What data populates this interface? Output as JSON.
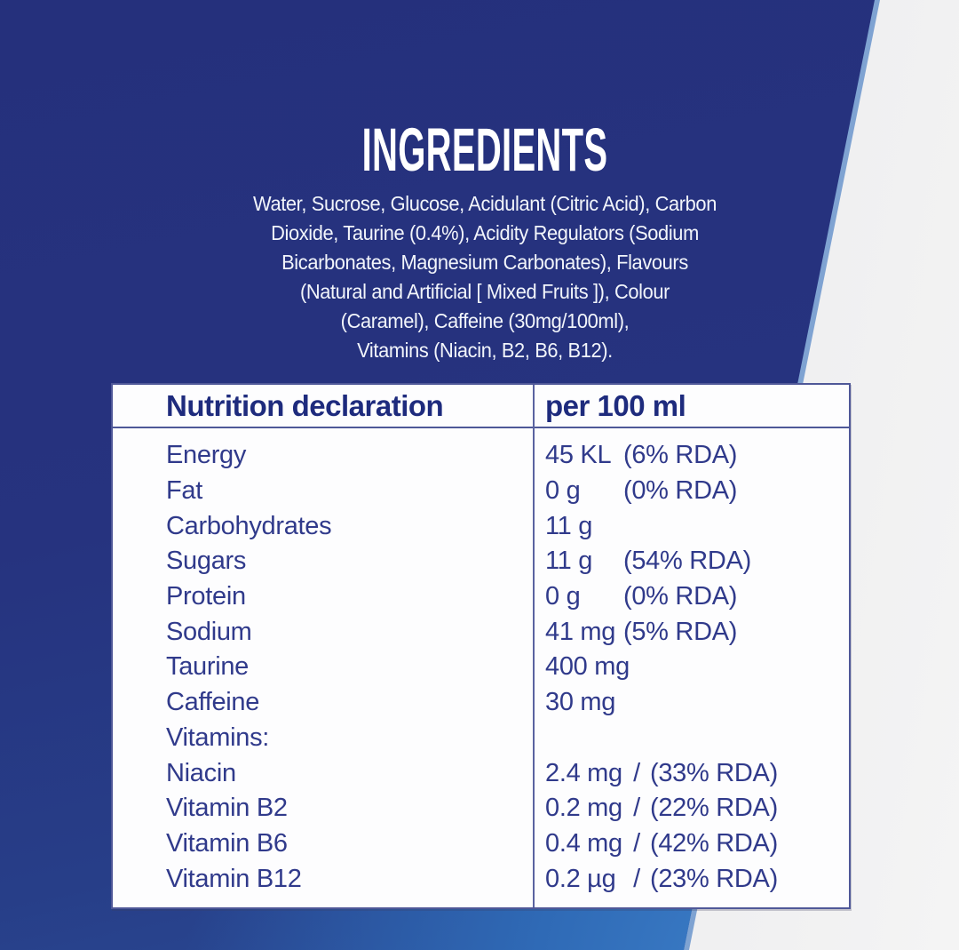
{
  "ingredients": {
    "title": "INGREDIENTS",
    "lines": [
      "Water, Sucrose, Glucose, Acidulant (Citric Acid), Carbon",
      "Dioxide, Taurine (0.4%), Acidity Regulators (Sodium",
      "Bicarbonates, Magnesium Carbonates), Flavours",
      "(Natural and Artificial [ Mixed Fruits ]), Colour",
      "(Caramel), Caffeine (30mg/100ml),",
      "Vitamins (Niacin, B2, B6, B12)."
    ]
  },
  "nutrition_table": {
    "header": {
      "col1": "Nutrition declaration",
      "col2": "per 100 ml"
    },
    "rows": [
      {
        "label": "Energy",
        "amount": "45 KL",
        "sep": "",
        "rda": "(6% RDA)"
      },
      {
        "label": "Fat",
        "amount": "0 g",
        "sep": "",
        "rda": "(0% RDA)"
      },
      {
        "label": "Carbohydrates",
        "amount": "11 g",
        "sep": "",
        "rda": ""
      },
      {
        "label": "Sugars",
        "amount": "11 g",
        "sep": "",
        "rda": "(54% RDA)"
      },
      {
        "label": "Protein",
        "amount": "0 g",
        "sep": "",
        "rda": "(0% RDA)"
      },
      {
        "label": "Sodium",
        "amount": "41 mg",
        "sep": "",
        "rda": "(5% RDA)"
      },
      {
        "label": "Taurine",
        "amount": "400 mg",
        "sep": "",
        "rda": ""
      },
      {
        "label": "Caffeine",
        "amount": "30 mg",
        "sep": "",
        "rda": ""
      },
      {
        "label": "Vitamins:",
        "amount": "",
        "sep": "",
        "rda": ""
      },
      {
        "label": "Niacin",
        "amount": "2.4 mg",
        "sep": "/",
        "rda": "(33% RDA)"
      },
      {
        "label": "Vitamin B2",
        "amount": "0.2 mg",
        "sep": "/",
        "rda": "(22% RDA)"
      },
      {
        "label": "Vitamin B6",
        "amount": "0.4 mg",
        "sep": "/",
        "rda": "(42% RDA)"
      },
      {
        "label": "Vitamin B12",
        "amount": "0.2 µg",
        "sep": "/",
        "rda": "(23% RDA)"
      }
    ]
  },
  "colors": {
    "panel_navy": "#25307c",
    "panel_bright_blue": "#2f6ab6",
    "paper_gray": "#efefef",
    "table_border": "#4f5898",
    "header_text": "#1e2b7d",
    "body_text": "#303a8b",
    "white_text": "#ffffff"
  }
}
